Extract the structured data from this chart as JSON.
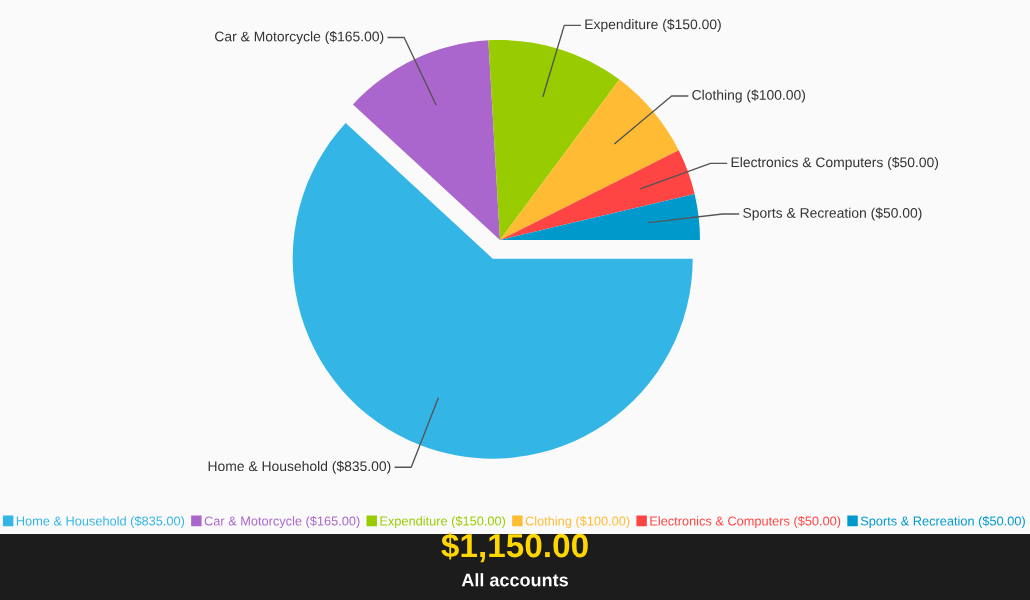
{
  "chart_data": {
    "type": "pie",
    "categories": [
      "Home & Household",
      "Car & Motorcycle",
      "Expenditure",
      "Clothing",
      "Electronics & Computers",
      "Sports & Recreation"
    ],
    "values": [
      835,
      165,
      150,
      100,
      50,
      50
    ],
    "value_labels": [
      "($835.00)",
      "($165.00)",
      "($150.00)",
      "($100.00)",
      "($50.00)",
      "($50.00)"
    ],
    "colors": [
      "#33b5e5",
      "#aa66cc",
      "#99cc00",
      "#ffbb33",
      "#ff4444",
      "#0099cc"
    ],
    "legend": "bottom",
    "annotations": [
      "$1,150.00",
      "All accounts"
    ]
  }
}
